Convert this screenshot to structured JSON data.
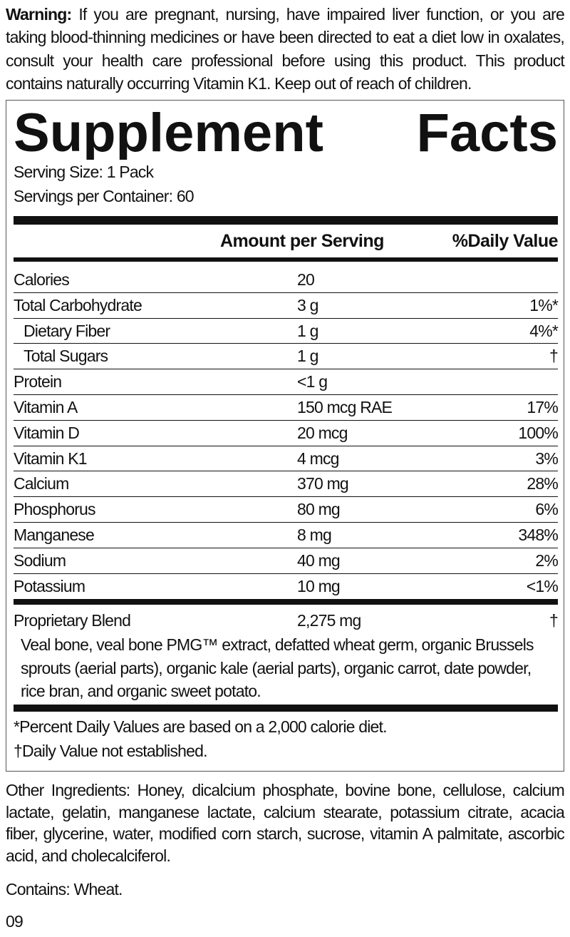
{
  "warning": {
    "label": "Warning:",
    "text": "If you are pregnant, nursing, have impaired liver function, or you are taking blood-thinning medicines or have been directed to eat a diet low in oxalates, consult your health care professional before using this product. This product contains naturally occurring Vitamin K1. Keep out of reach of children."
  },
  "panel": {
    "title": "Supplement Facts",
    "serving_size": "Serving Size: 1 Pack",
    "servings_per_container": "Servings per Container: 60",
    "header": {
      "amount": "Amount per Serving",
      "daily_value": "%Daily Value"
    },
    "rows": [
      {
        "name": "Calories",
        "amount": "20"
      },
      {
        "name": "Total Carbohydrate",
        "amount": "3 g",
        "dv": "1%*"
      },
      {
        "name": "Dietary Fiber",
        "amount": "1 g",
        "dv": "4%*",
        "indent": true
      },
      {
        "name": "Total Sugars",
        "amount": "1 g",
        "dv": "†",
        "indent": true
      },
      {
        "name": "Protein",
        "amount": "<1 g"
      },
      {
        "name": "Vitamin A",
        "amount": "150 mcg RAE",
        "dv": "17%"
      },
      {
        "name": "Vitamin D",
        "amount": "20 mcg",
        "dv": "100%"
      },
      {
        "name": "Vitamin K1",
        "amount": "4 mcg",
        "dv": "3%"
      },
      {
        "name": "Calcium",
        "amount": "370 mg",
        "dv": "28%"
      },
      {
        "name": "Phosphorus",
        "amount": "80 mg",
        "dv": "6%"
      },
      {
        "name": "Manganese",
        "amount": "8 mg",
        "dv": "348%"
      },
      {
        "name": "Sodium",
        "amount": "40 mg",
        "dv": "2%"
      },
      {
        "name": "Potassium",
        "amount": "10 mg",
        "dv": "<1%"
      }
    ],
    "blend": {
      "name": "Proprietary Blend",
      "amount": "2,275 mg",
      "dv": "†",
      "ingredients": "Veal bone, veal bone PMG™ extract, defatted wheat germ, organic Brussels sprouts (aerial parts), organic kale (aerial parts), organic carrot, date powder, rice bran, and organic sweet potato."
    },
    "footnotes": [
      "*Percent Daily Values are based on a 2,000 calorie diet.",
      "†Daily Value not established."
    ]
  },
  "other_ingredients": "Other Ingredients: Honey, dicalcium phosphate, bovine bone, cellulose, calcium lactate, gelatin, manganese lactate, calcium stearate, potassium citrate, acacia fiber, glycerine, water, modified corn starch, sucrose, vitamin A palmitate, ascorbic acid, and cholecalciferol.",
  "contains": "Contains: Wheat.",
  "code": "09"
}
